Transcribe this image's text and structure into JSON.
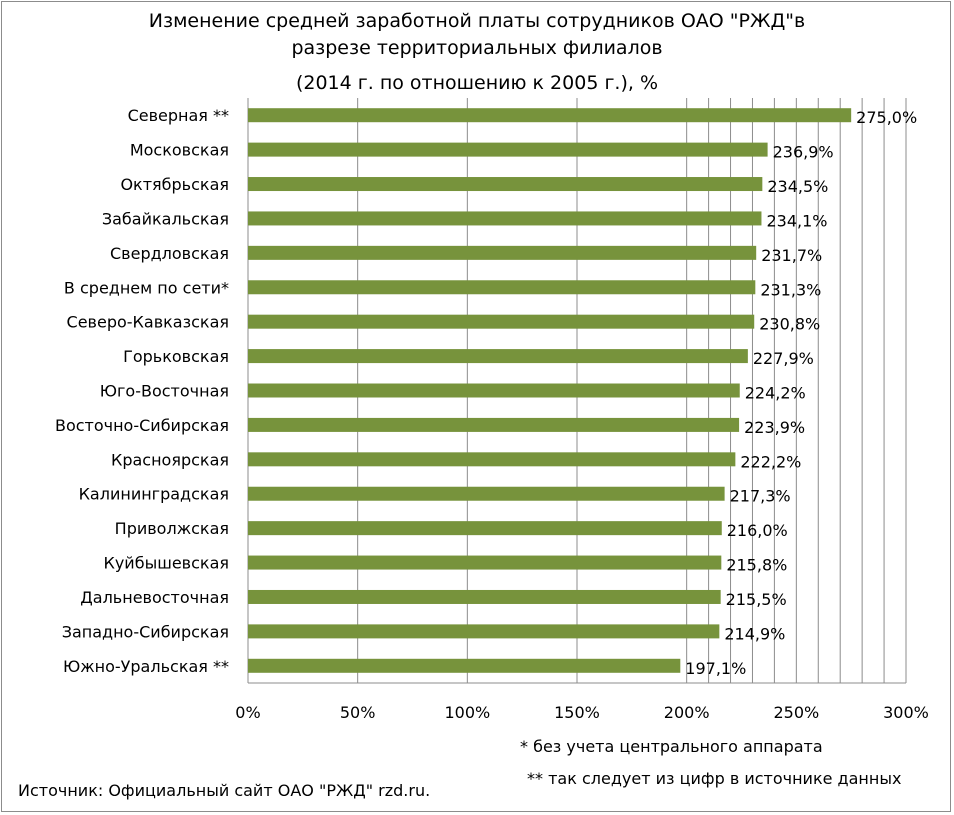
{
  "chart_data": {
    "type": "bar",
    "orientation": "horizontal",
    "title_lines": [
      "Изменение средней заработной платы сотрудников ОАО \"РЖД\"в",
      "разрезе территориальных филиалов",
      "(2014 г. по отношению к 2005 г.), %"
    ],
    "categories": [
      "Северная **",
      "Московская",
      "Октябрьская",
      "Забайкальская",
      "Свердловская",
      "В среднем по сети*",
      "Северо-Кавказская",
      "Горьковская",
      "Юго-Восточная",
      "Восточно-Сибирская",
      "Красноярская",
      "Калининградская",
      "Приволжская",
      "Куйбышевская",
      "Дальневосточная",
      "Западно-Сибирская",
      "Южно-Уральская **"
    ],
    "values": [
      275.0,
      236.9,
      234.5,
      234.1,
      231.7,
      231.3,
      230.8,
      227.9,
      224.2,
      223.9,
      222.2,
      217.3,
      216.0,
      215.8,
      215.5,
      214.9,
      197.1
    ],
    "value_labels": [
      "275,0%",
      "236,9%",
      "234,5%",
      "234,1%",
      "231,7%",
      "231,3%",
      "230,8%",
      "227,9%",
      "224,2%",
      "223,9%",
      "222,2%",
      "217,3%",
      "216,0%",
      "215,8%",
      "215,5%",
      "214,9%",
      "197,1%"
    ],
    "xlim": [
      0,
      300
    ],
    "x_ticks": [
      0,
      50,
      100,
      150,
      200,
      250,
      300
    ],
    "x_tick_labels": [
      "0%",
      "50%",
      "100%",
      "150%",
      "200%",
      "250%",
      "300%"
    ],
    "minor_gridline_step": 10,
    "minor_gridlines_from": 200,
    "grid": true,
    "legend": "none",
    "bar_color": "#77933c",
    "grid_color": "#8c8c8c"
  },
  "footnotes": {
    "central": "* без учета центрального аппарата",
    "source_note": "** так следует из цифр в источнике данных"
  },
  "source": "Источник: Официальный сайт ОАО \"РЖД\"  rzd.ru."
}
